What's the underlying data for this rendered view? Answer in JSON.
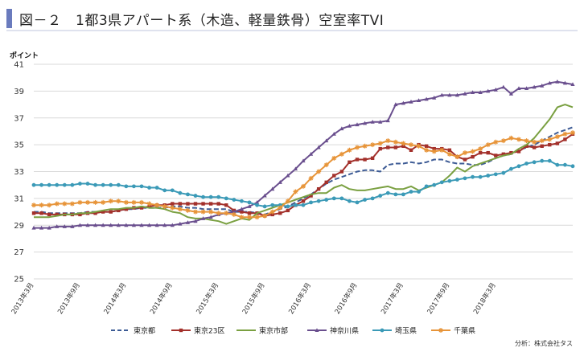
{
  "title": "図－２　1都3県アパート系（木造、軽量鉄骨）空室率TVI",
  "chart_data": {
    "type": "line",
    "title": "図－２　1都3県アパート系（木造、軽量鉄骨）空室率TVI",
    "ylabel": "ポイント",
    "xlabel": "",
    "ylim": [
      25,
      41
    ],
    "yticks": [
      25,
      27,
      29,
      31,
      33,
      35,
      37,
      39,
      41
    ],
    "grid": true,
    "legend": "bottom",
    "x_tick_labels": [
      "2013年3月",
      "2013年9月",
      "2014年3月",
      "2014年9月",
      "2015年3月",
      "2015年9月",
      "2016年3月",
      "2016年9月",
      "2017年3月",
      "2017年9月",
      "2018年3月"
    ],
    "series": [
      {
        "name": "東京都",
        "color": "#3d5b95",
        "marker": "none",
        "dash": true,
        "values": [
          30.0,
          30.0,
          29.9,
          29.9,
          29.9,
          29.9,
          29.9,
          30.0,
          30.0,
          30.0,
          30.0,
          30.1,
          30.2,
          30.2,
          30.3,
          30.3,
          30.3,
          30.3,
          30.4,
          30.4,
          30.3,
          30.3,
          30.2,
          30.2,
          30.2,
          30.2,
          30.0,
          30.0,
          30.0,
          29.9,
          29.8,
          30.0,
          30.2,
          30.4,
          30.7,
          31.0,
          31.3,
          31.7,
          32.1,
          32.4,
          32.6,
          32.8,
          33.0,
          33.1,
          33.1,
          33.0,
          33.5,
          33.6,
          33.6,
          33.7,
          33.6,
          33.7,
          33.9,
          33.9,
          33.7,
          33.6,
          33.6,
          33.5,
          33.5,
          33.7,
          34.0,
          34.2,
          34.3,
          34.6,
          34.8,
          35.0,
          35.3,
          35.6,
          35.9,
          36.1,
          36.3
        ]
      },
      {
        "name": "東京23区",
        "color": "#a3302b",
        "marker": "square",
        "dash": false,
        "values": [
          29.9,
          29.9,
          29.8,
          29.8,
          29.8,
          29.8,
          29.8,
          29.9,
          29.9,
          30.0,
          30.0,
          30.1,
          30.2,
          30.3,
          30.3,
          30.4,
          30.5,
          30.5,
          30.6,
          30.6,
          30.6,
          30.6,
          30.6,
          30.6,
          30.6,
          30.5,
          30.1,
          30.0,
          29.9,
          29.9,
          29.7,
          29.8,
          29.9,
          30.1,
          30.5,
          30.8,
          31.2,
          31.7,
          32.2,
          32.7,
          33.0,
          33.7,
          33.9,
          33.9,
          34.0,
          34.7,
          34.8,
          34.8,
          34.9,
          34.6,
          35.0,
          34.9,
          34.7,
          34.7,
          34.6,
          34.1,
          33.9,
          34.1,
          34.4,
          34.4,
          34.2,
          34.3,
          34.4,
          34.5,
          34.9,
          34.8,
          34.9,
          35.0,
          35.1,
          35.4,
          35.8
        ]
      },
      {
        "name": "東京市部",
        "color": "#7aa041",
        "marker": "none",
        "dash": false,
        "values": [
          29.6,
          29.6,
          29.6,
          29.7,
          29.8,
          29.8,
          29.9,
          29.9,
          30.0,
          30.1,
          30.2,
          30.2,
          30.3,
          30.3,
          30.4,
          30.3,
          30.3,
          30.2,
          30.0,
          29.9,
          29.6,
          29.5,
          29.5,
          29.4,
          29.3,
          29.1,
          29.3,
          29.5,
          29.4,
          29.9,
          30.1,
          30.3,
          30.5,
          30.7,
          30.9,
          31.1,
          31.3,
          31.4,
          31.4,
          31.8,
          32.0,
          31.7,
          31.6,
          31.6,
          31.7,
          31.8,
          31.9,
          31.7,
          31.7,
          31.9,
          31.6,
          31.8,
          32.0,
          32.2,
          32.7,
          33.3,
          33.0,
          33.4,
          33.6,
          33.8,
          34.0,
          34.2,
          34.3,
          34.7,
          35.0,
          35.5,
          36.2,
          36.9,
          37.8,
          38.0,
          37.8
        ]
      },
      {
        "name": "神奈川県",
        "color": "#6a4f8e",
        "marker": "triangle",
        "dash": false,
        "values": [
          28.8,
          28.8,
          28.8,
          28.9,
          28.9,
          28.9,
          29.0,
          29.0,
          29.0,
          29.0,
          29.0,
          29.0,
          29.0,
          29.0,
          29.0,
          29.0,
          29.0,
          29.0,
          29.0,
          29.1,
          29.2,
          29.3,
          29.5,
          29.6,
          29.8,
          29.9,
          30.0,
          30.2,
          30.4,
          30.7,
          31.2,
          31.7,
          32.2,
          32.7,
          33.2,
          33.8,
          34.3,
          34.8,
          35.3,
          35.8,
          36.2,
          36.4,
          36.5,
          36.6,
          36.7,
          36.7,
          36.8,
          38.0,
          38.1,
          38.2,
          38.3,
          38.4,
          38.5,
          38.7,
          38.7,
          38.7,
          38.8,
          38.9,
          38.9,
          39.0,
          39.1,
          39.3,
          38.8,
          39.2,
          39.2,
          39.3,
          39.4,
          39.6,
          39.7,
          39.6,
          39.5
        ]
      },
      {
        "name": "埼玉県",
        "color": "#3b9ab7",
        "marker": "circle",
        "dash": false,
        "values": [
          32.0,
          32.0,
          32.0,
          32.0,
          32.0,
          32.0,
          32.1,
          32.1,
          32.0,
          32.0,
          32.0,
          32.0,
          31.9,
          31.9,
          31.9,
          31.8,
          31.8,
          31.6,
          31.6,
          31.4,
          31.3,
          31.2,
          31.1,
          31.1,
          31.1,
          31.0,
          30.9,
          30.8,
          30.7,
          30.5,
          30.4,
          30.5,
          30.5,
          30.4,
          30.5,
          30.5,
          30.7,
          30.8,
          30.9,
          31.0,
          31.0,
          30.8,
          30.7,
          30.9,
          31.0,
          31.2,
          31.4,
          31.3,
          31.3,
          31.5,
          31.5,
          31.9,
          32.0,
          32.2,
          32.3,
          32.4,
          32.5,
          32.6,
          32.6,
          32.7,
          32.8,
          32.9,
          33.2,
          33.4,
          33.6,
          33.7,
          33.8,
          33.8,
          33.5,
          33.5,
          33.4
        ]
      },
      {
        "name": "千葉県",
        "color": "#e79439",
        "marker": "star",
        "dash": false,
        "values": [
          30.5,
          30.5,
          30.5,
          30.6,
          30.6,
          30.6,
          30.7,
          30.7,
          30.7,
          30.7,
          30.8,
          30.8,
          30.7,
          30.7,
          30.7,
          30.6,
          30.5,
          30.4,
          30.3,
          30.2,
          30.1,
          30.0,
          30.0,
          30.0,
          29.9,
          29.9,
          29.8,
          29.6,
          29.6,
          29.6,
          29.7,
          30.0,
          30.3,
          30.8,
          31.5,
          31.9,
          32.5,
          33.0,
          33.5,
          34.0,
          34.3,
          34.6,
          34.8,
          34.9,
          35.0,
          35.1,
          35.3,
          35.2,
          35.1,
          35.0,
          34.9,
          34.6,
          34.5,
          34.6,
          34.3,
          34.1,
          34.4,
          34.5,
          34.7,
          35.0,
          35.2,
          35.3,
          35.5,
          35.4,
          35.3,
          35.2,
          35.3,
          35.4,
          35.6,
          35.8,
          35.9
        ]
      }
    ],
    "source_note": "分析：株式会社タス"
  }
}
